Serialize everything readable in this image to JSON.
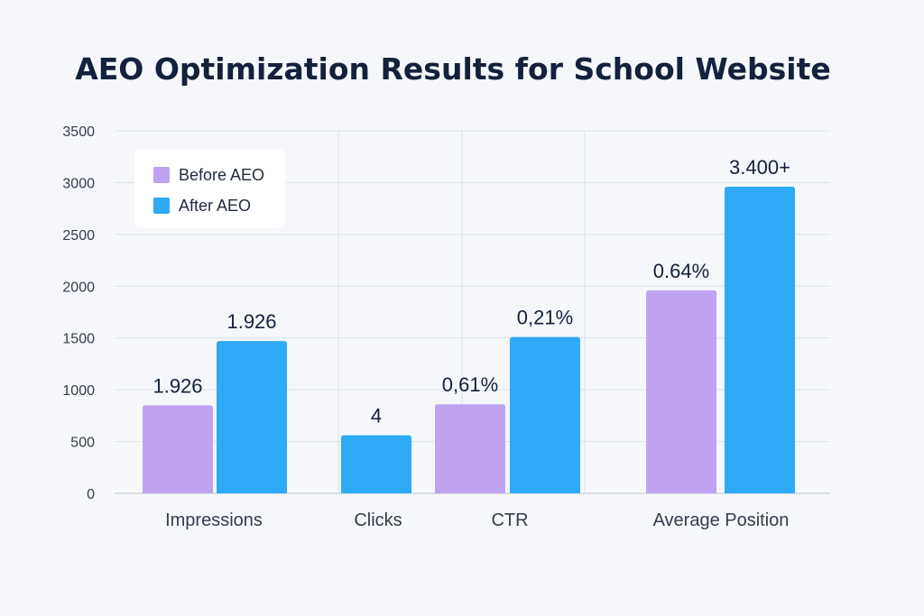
{
  "chart_data": {
    "type": "bar",
    "title": "AEO Optimization Results for School Website",
    "xlabel": "",
    "ylabel": "",
    "ylim": [
      0,
      3500
    ],
    "yticks": [
      0,
      500,
      1000,
      1500,
      2000,
      2500,
      3000,
      3500
    ],
    "grid": true,
    "legend_position": "top-left",
    "categories": [
      "Impressions",
      "Clicks",
      "CTR",
      "Average Position"
    ],
    "series": [
      {
        "name": "Before AEO",
        "color": "#bfa3f0",
        "values": [
          850,
          null,
          860,
          1960
        ],
        "labels": [
          "1.926",
          "",
          "0,61%",
          "0.64%"
        ]
      },
      {
        "name": "After AEO",
        "color": "#2eaaf7",
        "values": [
          1470,
          560,
          1510,
          2960
        ],
        "labels": [
          "1.926",
          "4",
          "0,21%",
          "3.400+"
        ]
      }
    ]
  },
  "colors": {
    "background": "#f5f7fa",
    "title": "#14213d",
    "grid": "#dde2ea",
    "axis_text": "#333d4d",
    "value_label": "#14213d"
  }
}
